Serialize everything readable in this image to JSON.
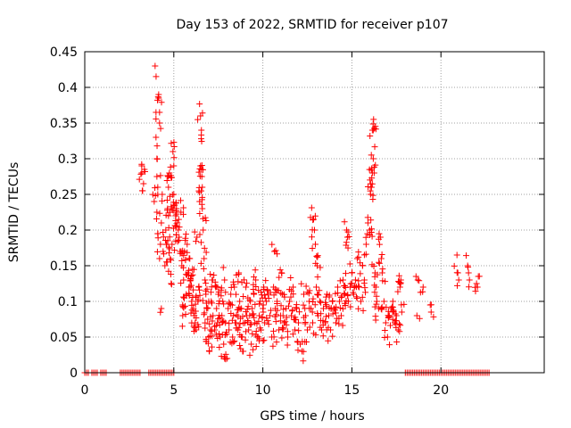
{
  "chart_data": {
    "type": "scatter",
    "title": "Day 153 of 2022, SRMTID for receiver p107",
    "xlabel": "GPS time / hours",
    "ylabel": "SRMTID / TECUs",
    "xlim": [
      0,
      25.8
    ],
    "ylim": [
      0,
      0.45
    ],
    "x_ticks": [
      0,
      5,
      10,
      15,
      20
    ],
    "x_tick_labels": [
      "0",
      "5",
      "10",
      "15",
      "20"
    ],
    "y_ticks": [
      0,
      0.05,
      0.1,
      0.15,
      0.2,
      0.25,
      0.3,
      0.35,
      0.4,
      0.45
    ],
    "y_tick_labels": [
      "0",
      "0.05",
      "0.1",
      "0.15",
      "0.2",
      "0.25",
      "0.3",
      "0.35",
      "0.4",
      "0.45"
    ],
    "grid": true,
    "marker": "+",
    "color": "#ff0000",
    "series": [
      {
        "name": "SRMTID",
        "points": [
          [
            3.2,
            0.29
          ],
          [
            3.2,
            0.28
          ],
          [
            3.25,
            0.255
          ],
          [
            3.3,
            0.265
          ],
          [
            3.35,
            0.285
          ],
          [
            3.9,
            0.24
          ],
          [
            3.95,
            0.43
          ],
          [
            4.0,
            0.365
          ],
          [
            4.0,
            0.33
          ],
          [
            4.05,
            0.3
          ],
          [
            4.05,
            0.275
          ],
          [
            4.1,
            0.26
          ],
          [
            4.1,
            0.25
          ],
          [
            4.15,
            0.39
          ],
          [
            4.15,
            0.385
          ],
          [
            4.2,
            0.35
          ],
          [
            4.2,
            0.365
          ],
          [
            4.05,
            0.225
          ],
          [
            4.1,
            0.195
          ],
          [
            4.2,
            0.16
          ],
          [
            4.3,
            0.09
          ],
          [
            4.25,
            0.18
          ],
          [
            4.3,
            0.21
          ],
          [
            4.35,
            0.25
          ],
          [
            4.4,
            0.17
          ],
          [
            4.5,
            0.15
          ],
          [
            4.55,
            0.2
          ],
          [
            4.6,
            0.18
          ],
          [
            4.65,
            0.23
          ],
          [
            4.7,
            0.26
          ],
          [
            4.7,
            0.22
          ],
          [
            4.75,
            0.28
          ],
          [
            4.8,
            0.16
          ],
          [
            4.85,
            0.125
          ],
          [
            4.9,
            0.18
          ],
          [
            4.95,
            0.31
          ],
          [
            5.0,
            0.29
          ],
          [
            5.0,
            0.25
          ],
          [
            5.05,
            0.235
          ],
          [
            5.1,
            0.22
          ],
          [
            5.15,
            0.23
          ],
          [
            5.2,
            0.21
          ],
          [
            5.25,
            0.2
          ],
          [
            5.3,
            0.19
          ],
          [
            5.35,
            0.17
          ],
          [
            5.4,
            0.225
          ],
          [
            5.45,
            0.15
          ],
          [
            5.5,
            0.08
          ],
          [
            5.5,
            0.095
          ],
          [
            5.55,
            0.13
          ],
          [
            5.6,
            0.17
          ],
          [
            5.7,
            0.11
          ],
          [
            5.75,
            0.18
          ],
          [
            5.8,
            0.14
          ],
          [
            5.85,
            0.12
          ],
          [
            5.9,
            0.16
          ],
          [
            5.95,
            0.13
          ],
          [
            6.0,
            0.1
          ],
          [
            6.05,
            0.145
          ],
          [
            6.1,
            0.09
          ],
          [
            6.15,
            0.08
          ],
          [
            6.2,
            0.07
          ],
          [
            6.25,
            0.06
          ],
          [
            6.3,
            0.19
          ],
          [
            6.35,
            0.1
          ],
          [
            6.4,
            0.12
          ],
          [
            6.45,
            0.24
          ],
          [
            6.5,
            0.29
          ],
          [
            6.5,
            0.36
          ],
          [
            6.55,
            0.34
          ],
          [
            6.55,
            0.285
          ],
          [
            6.6,
            0.26
          ],
          [
            6.6,
            0.23
          ],
          [
            6.65,
            0.2
          ],
          [
            6.7,
            0.16
          ],
          [
            6.75,
            0.13
          ],
          [
            6.8,
            0.11
          ],
          [
            6.85,
            0.09
          ],
          [
            6.9,
            0.075
          ],
          [
            6.95,
            0.05
          ],
          [
            7.0,
            0.03
          ],
          [
            7.05,
            0.06
          ],
          [
            7.1,
            0.1
          ],
          [
            7.15,
            0.13
          ],
          [
            7.2,
            0.08
          ],
          [
            7.3,
            0.06
          ],
          [
            7.35,
            0.12
          ],
          [
            7.4,
            0.09
          ],
          [
            7.45,
            0.07
          ],
          [
            7.5,
            0.11
          ],
          [
            7.6,
            0.05
          ],
          [
            7.7,
            0.08
          ],
          [
            7.75,
            0.1
          ],
          [
            7.8,
            0.04
          ],
          [
            7.85,
            0.13
          ],
          [
            7.9,
            0.07
          ],
          [
            8.0,
            0.02
          ],
          [
            8.05,
            0.09
          ],
          [
            8.1,
            0.06
          ],
          [
            8.2,
            0.11
          ],
          [
            8.3,
            0.05
          ],
          [
            8.35,
            0.08
          ],
          [
            8.4,
            0.12
          ],
          [
            8.5,
            0.07
          ],
          [
            8.6,
            0.06
          ],
          [
            8.65,
            0.14
          ],
          [
            8.7,
            0.1
          ],
          [
            8.8,
            0.09
          ],
          [
            8.85,
            0.05
          ],
          [
            8.9,
            0.03
          ],
          [
            9.0,
            0.07
          ],
          [
            9.05,
            0.12
          ],
          [
            9.1,
            0.08
          ],
          [
            9.2,
            0.06
          ],
          [
            9.3,
            0.1
          ],
          [
            9.35,
            0.04
          ],
          [
            9.4,
            0.09
          ],
          [
            9.5,
            0.11
          ],
          [
            9.55,
            0.07
          ],
          [
            9.6,
            0.13
          ],
          [
            9.7,
            0.05
          ],
          [
            9.8,
            0.08
          ],
          [
            9.85,
            0.1
          ],
          [
            9.9,
            0.06
          ],
          [
            10.0,
            0.09
          ],
          [
            10.05,
            0.12
          ],
          [
            10.1,
            0.07
          ],
          [
            10.2,
            0.1
          ],
          [
            10.3,
            0.11
          ],
          [
            10.4,
            0.08
          ],
          [
            10.5,
            0.05
          ],
          [
            10.6,
            0.12
          ],
          [
            10.65,
            0.17
          ],
          [
            10.7,
            0.09
          ],
          [
            10.8,
            0.1
          ],
          [
            10.9,
            0.06
          ],
          [
            11.0,
            0.08
          ],
          [
            11.05,
            0.14
          ],
          [
            11.1,
            0.11
          ],
          [
            11.2,
            0.07
          ],
          [
            11.3,
            0.09
          ],
          [
            11.4,
            0.05
          ],
          [
            11.5,
            0.1
          ],
          [
            11.6,
            0.08
          ],
          [
            11.7,
            0.12
          ],
          [
            11.8,
            0.06
          ],
          [
            11.9,
            0.09
          ],
          [
            12.0,
            0.07
          ],
          [
            12.1,
            0.04
          ],
          [
            12.2,
            0.03
          ],
          [
            12.3,
            0.11
          ],
          [
            12.4,
            0.08
          ],
          [
            12.5,
            0.06
          ],
          [
            12.6,
            0.1
          ],
          [
            12.7,
            0.09
          ],
          [
            12.8,
            0.07
          ],
          [
            12.85,
            0.215
          ],
          [
            12.9,
            0.2
          ],
          [
            12.95,
            0.18
          ],
          [
            13.0,
            0.12
          ],
          [
            13.05,
            0.15
          ],
          [
            13.1,
            0.08
          ],
          [
            13.2,
            0.1
          ],
          [
            13.3,
            0.06
          ],
          [
            13.4,
            0.09
          ],
          [
            13.5,
            0.07
          ],
          [
            13.6,
            0.11
          ],
          [
            13.7,
            0.08
          ],
          [
            13.8,
            0.06
          ],
          [
            13.9,
            0.1
          ],
          [
            14.0,
            0.09
          ],
          [
            14.1,
            0.07
          ],
          [
            14.2,
            0.12
          ],
          [
            14.3,
            0.1
          ],
          [
            14.4,
            0.08
          ],
          [
            14.5,
            0.13
          ],
          [
            14.6,
            0.11
          ],
          [
            14.7,
            0.2
          ],
          [
            14.75,
            0.19
          ],
          [
            14.8,
            0.1
          ],
          [
            14.9,
            0.12
          ],
          [
            15.0,
            0.14
          ],
          [
            15.1,
            0.11
          ],
          [
            15.2,
            0.13
          ],
          [
            15.3,
            0.16
          ],
          [
            15.4,
            0.12
          ],
          [
            15.5,
            0.1
          ],
          [
            15.6,
            0.15
          ],
          [
            15.7,
            0.13
          ],
          [
            15.8,
            0.18
          ],
          [
            15.9,
            0.21
          ],
          [
            16.0,
            0.2
          ],
          [
            16.05,
            0.25
          ],
          [
            16.1,
            0.26
          ],
          [
            16.15,
            0.28
          ],
          [
            16.15,
            0.34
          ],
          [
            16.2,
            0.34
          ],
          [
            16.2,
            0.3
          ],
          [
            16.25,
            0.28
          ],
          [
            16.3,
            0.14
          ],
          [
            16.35,
            0.12
          ],
          [
            16.4,
            0.1
          ],
          [
            16.5,
            0.09
          ],
          [
            16.6,
            0.19
          ],
          [
            16.65,
            0.16
          ],
          [
            16.7,
            0.14
          ],
          [
            16.8,
            0.1
          ],
          [
            16.9,
            0.07
          ],
          [
            17.0,
            0.05
          ],
          [
            17.1,
            0.08
          ],
          [
            17.2,
            0.09
          ],
          [
            17.3,
            0.1
          ],
          [
            17.4,
            0.07
          ],
          [
            17.5,
            0.08
          ],
          [
            17.6,
            0.06
          ],
          [
            17.7,
            0.12
          ],
          [
            17.75,
            0.13
          ],
          [
            17.8,
            0.085
          ],
          [
            18.6,
            0.135
          ],
          [
            18.65,
            0.08
          ],
          [
            18.7,
            0.13
          ],
          [
            19.0,
            0.12
          ],
          [
            19.4,
            0.095
          ],
          [
            19.45,
            0.085
          ],
          [
            20.9,
            0.165
          ],
          [
            20.95,
            0.14
          ],
          [
            21.0,
            0.13
          ],
          [
            21.5,
            0.15
          ],
          [
            21.55,
            0.14
          ],
          [
            21.6,
            0.13
          ],
          [
            22.0,
            0.125
          ],
          [
            22.05,
            0.12
          ],
          [
            22.1,
            0.135
          ]
        ],
        "zeros": [
          [
            0.0,
            0.22
          ],
          [
            0.4,
            0.7
          ],
          [
            0.9,
            1.2
          ],
          [
            2.0,
            3.1
          ],
          [
            3.6,
            5.0
          ],
          [
            18.0,
            22.7
          ]
        ]
      }
    ]
  }
}
